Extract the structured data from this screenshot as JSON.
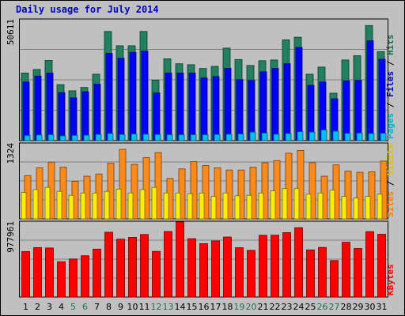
{
  "chart_data": {
    "type": "bar",
    "title": "Daily usage for July 2014",
    "categories": [
      "1",
      "2",
      "3",
      "4",
      "5",
      "6",
      "7",
      "8",
      "9",
      "10",
      "11",
      "12",
      "13",
      "14",
      "15",
      "16",
      "17",
      "18",
      "19",
      "20",
      "21",
      "22",
      "23",
      "24",
      "25",
      "26",
      "27",
      "28",
      "29",
      "30",
      "31"
    ],
    "weekend_days": [
      "5",
      "6",
      "12",
      "13",
      "19",
      "20",
      "26",
      "27"
    ],
    "panels": [
      {
        "name": "hits-files-pages",
        "max_label": "50611",
        "ymax": 50611,
        "right_label": [
          {
            "text": "Pages",
            "color": "#00b0e0"
          },
          {
            "text": " / ",
            "color": "#000000"
          },
          {
            "text": "Files",
            "color": "#0000c0"
          },
          {
            "text": " / ",
            "color": "#000000"
          },
          {
            "text": "Hits",
            "color": "#207050"
          }
        ],
        "series": [
          {
            "name": "Hits",
            "color": "#208060",
            "values": [
              28500,
              30000,
              33800,
              23600,
              21000,
              22400,
              28000,
              46000,
              40000,
              40000,
              46000,
              25500,
              34500,
              32400,
              32000,
              30400,
              31300,
              39000,
              34200,
              31700,
              33700,
              34000,
              42500,
              43600,
              28000,
              31000,
              20000,
              34000,
              35800,
              48500,
              37500
            ]
          },
          {
            "name": "Files",
            "color": "#0000ff",
            "values": [
              24700,
              27200,
              28500,
              20200,
              18000,
              20600,
              23800,
              36800,
              34700,
              37200,
              37700,
              20100,
              28500,
              28500,
              28500,
              26400,
              27000,
              30500,
              25700,
              25400,
              29000,
              30500,
              32400,
              39300,
              23300,
              24700,
              17600,
              25200,
              25400,
              42100,
              34300
            ]
          },
          {
            "name": "Pages",
            "color": "#00c0f0",
            "values": [
              2200,
              2400,
              2500,
              2000,
              2200,
              2300,
              2600,
              3000,
              2600,
              2800,
              2700,
              2600,
              2500,
              2500,
              2500,
              2500,
              2600,
              2700,
              2800,
              3600,
              3200,
              2700,
              3000,
              3800,
              3600,
              4500,
              4000,
              3100,
              3200,
              3000,
              3100
            ]
          }
        ]
      },
      {
        "name": "visits-sites",
        "max_label": "1324",
        "ymax": 1324,
        "right_label": [
          {
            "text": "Sites",
            "color": "#ff8000"
          },
          {
            "text": " / ",
            "color": "#000000"
          },
          {
            "text": "Visits",
            "color": "#e0c000"
          }
        ],
        "series": [
          {
            "name": "Visits",
            "color": "#ff8a1a",
            "values": [
              770,
              910,
              1010,
              920,
              670,
              760,
              800,
              990,
              1240,
              970,
              1090,
              1180,
              720,
              890,
              1020,
              950,
              910,
              870,
              870,
              920,
              1000,
              1040,
              1170,
              1220,
              1000,
              760,
              960,
              850,
              830,
              840,
              1030
            ]
          },
          {
            "name": "Sites",
            "color": "#ffee00",
            "values": [
              470,
              520,
              560,
              490,
              420,
              460,
              460,
              490,
              530,
              460,
              520,
              560,
              460,
              460,
              450,
              460,
              400,
              460,
              410,
              420,
              460,
              500,
              540,
              540,
              440,
              460,
              510,
              400,
              370,
              400,
              440
            ]
          }
        ]
      },
      {
        "name": "kbytes",
        "max_label": "977961",
        "ymax": 977961,
        "right_label": [
          {
            "text": "KBytes",
            "color": "#ff0000"
          }
        ],
        "series": [
          {
            "name": "KBytes",
            "color": "#ff0000",
            "values": [
              599000,
              651000,
              646000,
              465000,
              501000,
              544000,
              632000,
              854000,
              763000,
              787000,
              824000,
              601000,
              863000,
              990000,
              769000,
              703000,
              739000,
              791000,
              650000,
              615000,
              814000,
              815000,
              849000,
              913000,
              621000,
              653000,
              481000,
              722000,
              640000,
              861000,
              827000
            ]
          }
        ]
      }
    ],
    "grid": true,
    "legend": "right-vertical"
  }
}
